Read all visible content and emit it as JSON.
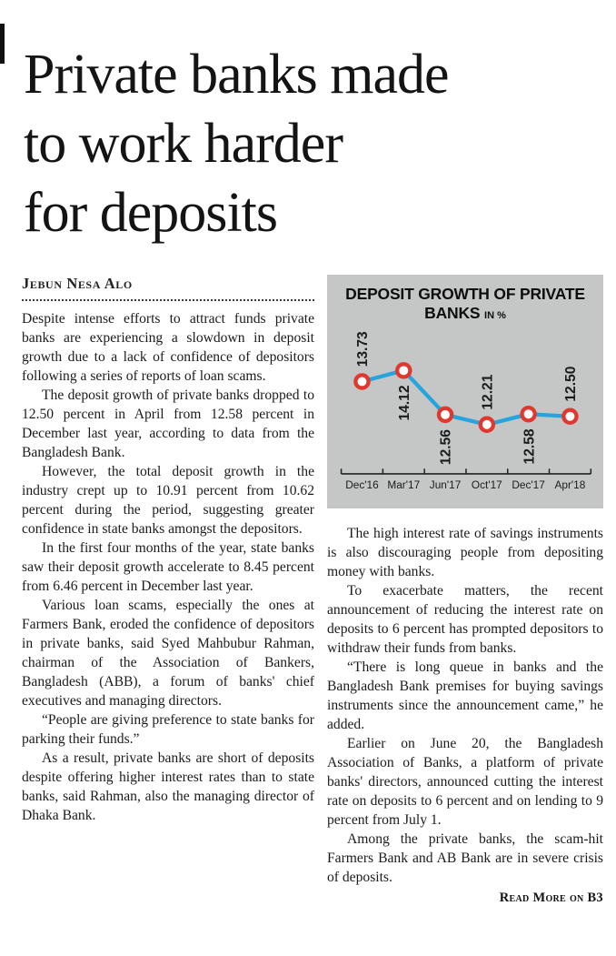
{
  "article": {
    "headline": "Private banks made to work harder for deposits",
    "headline_lines": [
      "Private banks made",
      "to work harder",
      "for deposits"
    ],
    "byline": "Jebun Nesa Alo",
    "left_column_paragraphs": [
      "Despite intense efforts to attract funds private banks are experiencing a slowdown in deposit growth due to a lack of confidence of depositors following a series of reports of loan scams.",
      "The deposit growth of private banks dropped to 12.50 percent in April from 12.58 percent in December last year, according to data from the Bangladesh Bank.",
      "However, the total deposit growth in the industry crept up to 10.91 percent from 10.62 percent during the period, suggesting greater confidence in state banks amongst the depositors.",
      "In the first four months of the year, state banks saw their deposit growth accelerate to 8.45 percent from 6.46 percent in December last year.",
      "Various loan scams, especially the ones at Farmers Bank, eroded the confidence of depositors in private banks, said Syed Mahbubur Rahman, chairman of the Association of Bankers, Bangladesh (ABB), a forum of banks' chief executives and managing directors.",
      "“People are giving preference to state banks for parking their funds.”",
      "As a result, private banks are short of deposits despite offering higher interest rates than to state banks, said Rahman, also the managing director of Dhaka Bank."
    ],
    "right_column_paragraphs": [
      "The high interest rate of savings instruments is also discouraging people from depositing money with banks.",
      "To exacerbate matters, the recent announcement of reducing the interest rate on deposits to 6 percent has prompted depositors to withdraw their funds from banks.",
      "“There is long queue in banks and the Bangladesh Bank premises for buying savings instruments since the announcement came,” he added.",
      "Earlier on June 20, the Bangladesh Association of Banks, a platform of private banks' directors, announced cutting the interest rate on deposits to 6 percent and on lending to 9 percent from July 1.",
      "Among the private banks, the scam-hit Farmers Bank and AB Bank are in severe crisis of deposits."
    ],
    "read_more": "Read More on B3"
  },
  "chart_data": {
    "type": "line",
    "title": "DEPOSIT GROWTH OF PRIVATE BANKS",
    "title_line1": "DEPOSIT GROWTH OF PRIVATE",
    "title_line2": "BANKS",
    "subtitle": "IN %",
    "categories": [
      "Dec'16",
      "Mar'17",
      "Jun'17",
      "Oct'17",
      "Dec'17",
      "Apr'18"
    ],
    "values": [
      13.73,
      14.12,
      12.56,
      12.21,
      12.58,
      12.5
    ],
    "label_positions": [
      "above",
      "below",
      "below",
      "above",
      "below",
      "above"
    ],
    "ylim": [
      11.9,
      14.7
    ],
    "grid": false,
    "legend_position": "none",
    "background": "#c5c6c6",
    "line_color": "#25a5dd",
    "marker_fill": "#ffffff",
    "marker_stroke": "#e0382f",
    "axis_color": "#222222",
    "text_color": "#1b1b1b"
  }
}
